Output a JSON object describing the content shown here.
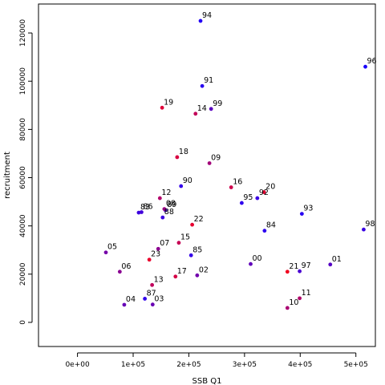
{
  "chart_data": {
    "type": "scatter",
    "xlabel": "SSB Q1",
    "ylabel": "recruitment",
    "xlim": [
      -70000,
      535000
    ],
    "ylim": [
      -10000,
      132000
    ],
    "x_ticks": [
      {
        "value": 0,
        "label": "0e+00"
      },
      {
        "value": 100000,
        "label": "1e+05"
      },
      {
        "value": 200000,
        "label": "2e+05"
      },
      {
        "value": 300000,
        "label": "3e+05"
      },
      {
        "value": 400000,
        "label": "4e+05"
      },
      {
        "value": 500000,
        "label": "5e+05"
      }
    ],
    "y_ticks": [
      {
        "value": 0,
        "label": "0"
      },
      {
        "value": 20000,
        "label": "20000"
      },
      {
        "value": 40000,
        "label": "40000"
      },
      {
        "value": 60000,
        "label": "60000"
      },
      {
        "value": 80000,
        "label": "80000"
      },
      {
        "value": 100000,
        "label": "100000"
      },
      {
        "value": 120000,
        "label": "120000"
      }
    ],
    "grid": false,
    "points": [
      {
        "label": "83",
        "x": 110000,
        "y": 45500,
        "color": "#3a00e0"
      },
      {
        "label": "84",
        "x": 336000,
        "y": 38000,
        "color": "#2c00f0"
      },
      {
        "label": "85",
        "x": 204000,
        "y": 27800,
        "color": "#3500e8"
      },
      {
        "label": "86",
        "x": 115000,
        "y": 45700,
        "color": "#4200da"
      },
      {
        "label": "87",
        "x": 121000,
        "y": 9800,
        "color": "#3000ec"
      },
      {
        "label": "88",
        "x": 153000,
        "y": 43500,
        "color": "#3d00e0"
      },
      {
        "label": "89",
        "x": 158000,
        "y": 46500,
        "color": "#4800d5"
      },
      {
        "label": "90",
        "x": 186000,
        "y": 56500,
        "color": "#3300ea"
      },
      {
        "label": "91",
        "x": 224000,
        "y": 98000,
        "color": "#2800f0"
      },
      {
        "label": "92",
        "x": 323000,
        "y": 51500,
        "color": "#3a00e4"
      },
      {
        "label": "93",
        "x": 403000,
        "y": 45000,
        "color": "#2600f2"
      },
      {
        "label": "94",
        "x": 221000,
        "y": 125000,
        "color": "#2200f5"
      },
      {
        "label": "95",
        "x": 295000,
        "y": 49500,
        "color": "#3000ee"
      },
      {
        "label": "96",
        "x": 517000,
        "y": 106000,
        "color": "#1800fa"
      },
      {
        "label": "97",
        "x": 399000,
        "y": 21200,
        "color": "#4a00d2"
      },
      {
        "label": "98",
        "x": 514000,
        "y": 38500,
        "color": "#3800e4"
      },
      {
        "label": "99",
        "x": 240000,
        "y": 88500,
        "color": "#5a00c0"
      },
      {
        "label": "00",
        "x": 311000,
        "y": 24200,
        "color": "#6000ba"
      },
      {
        "label": "01",
        "x": 454000,
        "y": 24000,
        "color": "#5500c4"
      },
      {
        "label": "02",
        "x": 215000,
        "y": 19500,
        "color": "#7200ac"
      },
      {
        "label": "03",
        "x": 135000,
        "y": 7400,
        "color": "#6800b4"
      },
      {
        "label": "04",
        "x": 84000,
        "y": 7300,
        "color": "#6600b6"
      },
      {
        "label": "05",
        "x": 51000,
        "y": 29000,
        "color": "#7500a8"
      },
      {
        "label": "06",
        "x": 76000,
        "y": 21000,
        "color": "#8a0092"
      },
      {
        "label": "07",
        "x": 145000,
        "y": 30500,
        "color": "#8c0090"
      },
      {
        "label": "08",
        "x": 156000,
        "y": 47000,
        "color": "#9a0082"
      },
      {
        "label": "09",
        "x": 237000,
        "y": 66000,
        "color": "#a20078"
      },
      {
        "label": "10",
        "x": 377000,
        "y": 6000,
        "color": "#aa0072"
      },
      {
        "label": "11",
        "x": 399000,
        "y": 10000,
        "color": "#b00068"
      },
      {
        "label": "12",
        "x": 148000,
        "y": 51500,
        "color": "#b4006a"
      },
      {
        "label": "13",
        "x": 134000,
        "y": 15500,
        "color": "#c0005c"
      },
      {
        "label": "14",
        "x": 212000,
        "y": 86500,
        "color": "#c20058"
      },
      {
        "label": "15",
        "x": 182000,
        "y": 33000,
        "color": "#c60054"
      },
      {
        "label": "16",
        "x": 276000,
        "y": 56000,
        "color": "#ce004c"
      },
      {
        "label": "17",
        "x": 176000,
        "y": 19000,
        "color": "#d40046"
      },
      {
        "label": "18",
        "x": 179000,
        "y": 68500,
        "color": "#d80040"
      },
      {
        "label": "19",
        "x": 152000,
        "y": 89000,
        "color": "#e0003a"
      },
      {
        "label": "20",
        "x": 335000,
        "y": 54000,
        "color": "#e40032"
      },
      {
        "label": "21",
        "x": 377000,
        "y": 21000,
        "color": "#f0001e"
      },
      {
        "label": "22",
        "x": 206000,
        "y": 40500,
        "color": "#e80030"
      },
      {
        "label": "23",
        "x": 129000,
        "y": 26000,
        "color": "#ea002c"
      }
    ]
  }
}
